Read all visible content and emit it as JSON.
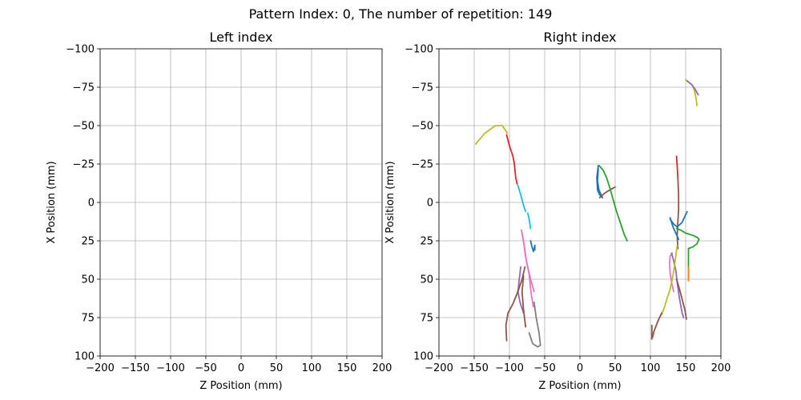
{
  "chart_data": {
    "type": "line",
    "title": "Pattern Index: 0, The number of repetition: 149",
    "colors": [
      "#1f77b4",
      "#ff7f0e",
      "#2ca02c",
      "#d62728",
      "#9467bd",
      "#8c564b",
      "#e377c2",
      "#7f7f7f",
      "#bcbd22",
      "#17becf"
    ],
    "panels": [
      {
        "title": "Left index",
        "xlabel": "Z Position (mm)",
        "ylabel": "X Position (mm)",
        "xlim": [
          -200,
          200
        ],
        "ylim": [
          -100,
          100
        ],
        "y_inverted": true,
        "grid": true,
        "xticks": [
          "−200",
          "−150",
          "−100",
          "−50",
          "0",
          "50",
          "100",
          "150",
          "200"
        ],
        "yticks": [
          "−100",
          "−75",
          "−50",
          "−25",
          "0",
          "25",
          "50",
          "75",
          "100"
        ],
        "series": []
      },
      {
        "title": "Right index",
        "xlabel": "Z Position (mm)",
        "ylabel": "X Position (mm)",
        "xlim": [
          -200,
          200
        ],
        "ylim": [
          -100,
          100
        ],
        "y_inverted": true,
        "grid": true,
        "xticks": [
          "−200",
          "−150",
          "−100",
          "−50",
          "0",
          "50",
          "100",
          "150",
          "200"
        ],
        "yticks": [
          "−100",
          "−75",
          "−50",
          "−25",
          "0",
          "25",
          "50",
          "75",
          "100"
        ],
        "series": [
          {
            "color": "#bcbd22",
            "points": [
              [
                -148,
                -38
              ],
              [
                -135,
                -45
              ],
              [
                -120,
                -50
              ],
              [
                -110,
                -50
              ],
              [
                -103,
                -45
              ]
            ]
          },
          {
            "color": "#d62728",
            "points": [
              [
                -104,
                -44
              ],
              [
                -100,
                -37
              ],
              [
                -95,
                -30
              ],
              [
                -93,
                -25
              ],
              [
                -91,
                -16
              ],
              [
                -89,
                -12
              ]
            ]
          },
          {
            "color": "#17becf",
            "points": [
              [
                -88,
                -11
              ],
              [
                -84,
                -5
              ],
              [
                -80,
                2
              ],
              [
                -77,
                6
              ]
            ]
          },
          {
            "color": "#17becf",
            "points": [
              [
                -74,
                7
              ],
              [
                -72,
                11
              ],
              [
                -70,
                17
              ]
            ]
          },
          {
            "color": "#e377c2",
            "points": [
              [
                -83,
                18
              ],
              [
                -80,
                25
              ],
              [
                -78,
                33
              ],
              [
                -75,
                40
              ],
              [
                -70,
                50
              ],
              [
                -65,
                58
              ]
            ]
          },
          {
            "color": "#e377c2",
            "points": [
              [
                -82,
                20
              ],
              [
                -79,
                28
              ],
              [
                -76,
                38
              ],
              [
                -72,
                47
              ],
              [
                -69,
                60
              ],
              [
                -66,
                68
              ]
            ]
          },
          {
            "color": "#1f77b4",
            "points": [
              [
                -70,
                25
              ],
              [
                -68,
                29
              ],
              [
                -66,
                32
              ],
              [
                -64,
                28
              ],
              [
                -64,
                31
              ]
            ]
          },
          {
            "color": "#9467bd",
            "points": [
              [
                -84,
                42
              ],
              [
                -86,
                50
              ],
              [
                -88,
                58
              ],
              [
                -85,
                65
              ],
              [
                -80,
                72
              ]
            ]
          },
          {
            "color": "#8c564b",
            "points": [
              [
                -78,
                42
              ],
              [
                -82,
                50
              ],
              [
                -88,
                58
              ],
              [
                -95,
                66
              ],
              [
                -102,
                72
              ],
              [
                -105,
                80
              ],
              [
                -104,
                90
              ]
            ]
          },
          {
            "color": "#8c564b",
            "points": [
              [
                -80,
                48
              ],
              [
                -82,
                58
              ],
              [
                -80,
                70
              ],
              [
                -77,
                81
              ]
            ]
          },
          {
            "color": "#7f7f7f",
            "points": [
              [
                -65,
                65
              ],
              [
                -62,
                75
              ],
              [
                -58,
                85
              ],
              [
                -56,
                93
              ],
              [
                -60,
                94
              ],
              [
                -67,
                92
              ],
              [
                -72,
                85
              ]
            ]
          },
          {
            "color": "#1f77b4",
            "points": [
              [
                26,
                -24
              ],
              [
                24,
                -16
              ],
              [
                25,
                -8
              ],
              [
                28,
                -5
              ],
              [
                32,
                -3
              ],
              [
                27,
                -8
              ],
              [
                25,
                -14
              ],
              [
                26,
                -22
              ]
            ]
          },
          {
            "color": "#8c564b",
            "points": [
              [
                28,
                -3
              ],
              [
                35,
                -6
              ],
              [
                42,
                -8
              ],
              [
                50,
                -10
              ]
            ]
          },
          {
            "color": "#2ca02c",
            "points": [
              [
                27,
                -24
              ],
              [
                33,
                -21
              ],
              [
                38,
                -16
              ],
              [
                42,
                -10
              ],
              [
                47,
                -2
              ],
              [
                52,
                6
              ],
              [
                58,
                14
              ],
              [
                63,
                21
              ],
              [
                67,
                25
              ]
            ]
          },
          {
            "color": "#bcbd22",
            "points": [
              [
                150,
                -80
              ],
              [
                155,
                -78
              ],
              [
                160,
                -76
              ],
              [
                163,
                -72
              ],
              [
                165,
                -67
              ],
              [
                166,
                -63
              ]
            ]
          },
          {
            "color": "#9467bd",
            "points": [
              [
                152,
                -79
              ],
              [
                158,
                -77
              ],
              [
                163,
                -74
              ],
              [
                168,
                -70
              ]
            ]
          },
          {
            "color": "#d62728",
            "points": [
              [
                137,
                -30
              ],
              [
                138,
                -24
              ],
              [
                139,
                -16
              ]
            ]
          },
          {
            "color": "#8c564b",
            "points": [
              [
                139,
                -16
              ],
              [
                140,
                -5
              ],
              [
                140,
                5
              ],
              [
                139,
                12
              ],
              [
                138,
                22
              ],
              [
                139,
                30
              ]
            ]
          },
          {
            "color": "#1f77b4",
            "points": [
              [
                152,
                6
              ],
              [
                148,
                10
              ],
              [
                145,
                13
              ],
              [
                138,
                16
              ],
              [
                133,
                14
              ],
              [
                128,
                11
              ]
            ]
          },
          {
            "color": "#1f77b4",
            "points": [
              [
                128,
                10
              ],
              [
                132,
                16
              ],
              [
                136,
                20
              ],
              [
                140,
                24
              ]
            ]
          },
          {
            "color": "#2ca02c",
            "points": [
              [
                137,
                17
              ],
              [
                143,
                18
              ],
              [
                150,
                20
              ],
              [
                157,
                21
              ],
              [
                163,
                22
              ],
              [
                167,
                23
              ],
              [
                169,
                24
              ]
            ]
          },
          {
            "color": "#2ca02c",
            "points": [
              [
                169,
                24
              ],
              [
                166,
                27
              ],
              [
                160,
                29
              ],
              [
                154,
                30
              ],
              [
                154,
                37
              ],
              [
                154,
                44
              ],
              [
                154,
                50
              ]
            ]
          },
          {
            "color": "#ff7f0e",
            "points": [
              [
                154,
                42
              ],
              [
                154,
                51
              ]
            ]
          },
          {
            "color": "#e377c2",
            "points": [
              [
                131,
                33
              ],
              [
                128,
                35
              ],
              [
                127,
                40
              ],
              [
                128,
                46
              ],
              [
                130,
                52
              ],
              [
                133,
                58
              ]
            ]
          },
          {
            "color": "#9467bd",
            "points": [
              [
                130,
                33
              ],
              [
                133,
                38
              ],
              [
                136,
                44
              ],
              [
                138,
                52
              ],
              [
                141,
                62
              ],
              [
                145,
                72
              ],
              [
                147,
                75
              ]
            ]
          },
          {
            "color": "#bcbd22",
            "points": [
              [
                138,
                28
              ],
              [
                136,
                35
              ],
              [
                134,
                42
              ],
              [
                131,
                50
              ],
              [
                127,
                58
              ],
              [
                124,
                62
              ],
              [
                120,
                68
              ],
              [
                116,
                73
              ]
            ]
          },
          {
            "color": "#8c564b",
            "points": [
              [
                116,
                72
              ],
              [
                110,
                78
              ],
              [
                105,
                84
              ],
              [
                103,
                88
              ]
            ]
          },
          {
            "color": "#8c564b",
            "points": [
              [
                102,
                80
              ],
              [
                102,
                86
              ],
              [
                102,
                89
              ]
            ]
          },
          {
            "color": "#8c564b",
            "points": [
              [
                137,
                50
              ],
              [
                141,
                56
              ],
              [
                145,
                63
              ],
              [
                149,
                70
              ],
              [
                151,
                76
              ]
            ]
          }
        ]
      }
    ]
  }
}
